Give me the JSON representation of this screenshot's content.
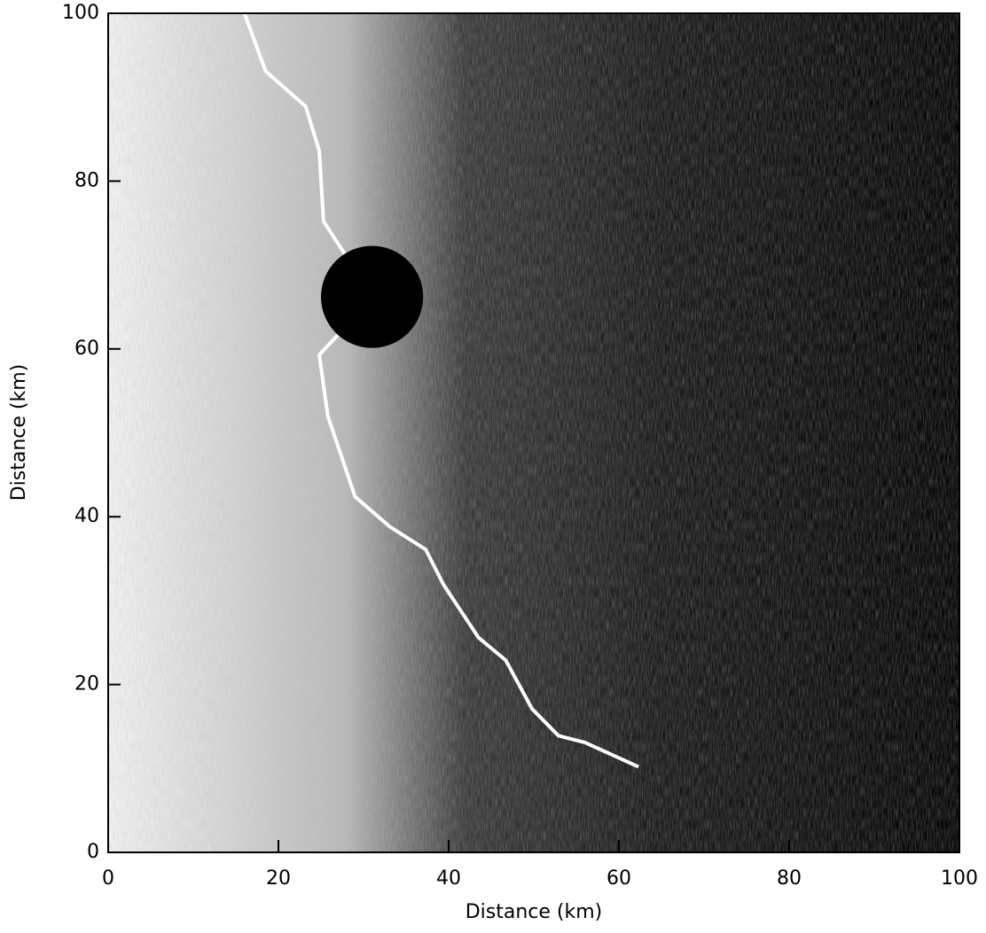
{
  "chart_data": {
    "type": "line",
    "xlabel": "Distance (km)",
    "ylabel": "Distance (km)",
    "x": [
      16.0,
      18.5,
      23.2,
      24.8,
      25.3,
      28.0,
      31.0,
      24.8,
      25.8,
      29.0,
      33.1,
      37.3,
      39.4,
      43.5,
      46.7,
      49.8,
      52.9,
      56.0,
      62.3
    ],
    "series": [
      {
        "color": "#ffffff",
        "values": [
          100,
          93.1,
          88.9,
          83.6,
          75.2,
          71.0,
          66.0,
          59.3,
          52.0,
          42.4,
          38.8,
          36.1,
          31.9,
          25.6,
          22.9,
          17.1,
          13.9,
          13.1,
          10.2
        ]
      }
    ],
    "markers": {
      "color": "#000000",
      "x": [
        31.0
      ],
      "y": [
        66.2
      ],
      "size": [
        6
      ]
    },
    "xlim": [
      0,
      100
    ],
    "ylim": [
      0,
      100
    ],
    "xticks": [
      0,
      20,
      40,
      60,
      80,
      100
    ],
    "yticks": [
      0,
      20,
      40,
      60,
      80,
      100
    ]
  }
}
